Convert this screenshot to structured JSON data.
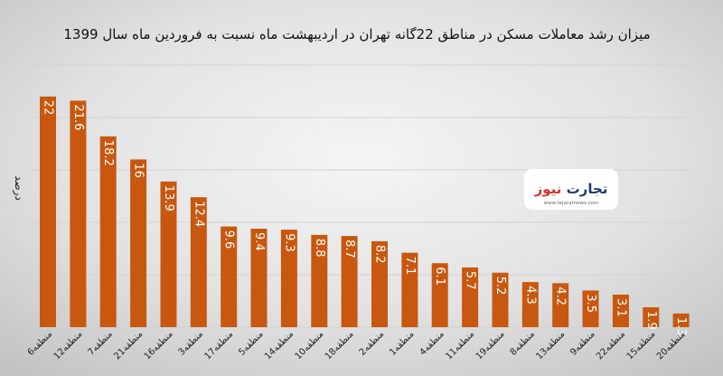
{
  "chart_data": {
    "type": "bar",
    "title": "میزان رشد معاملات مسکن در مناطق 22گانه تهران در اردیبهشت ماه نسبت به فروردین ماه سال 1399",
    "ylabel": "درصد",
    "xlabel": "",
    "categories": [
      "منطقه6",
      "منطقه12",
      "منطقه7",
      "منطقه21",
      "منطقه16",
      "منطقه3",
      "منطقه17",
      "منطقه5",
      "منطقه14",
      "منطقه10",
      "منطقه18",
      "منطقه2",
      "منطقه1",
      "منطقه4",
      "منطقه11",
      "منطقه19",
      "منطقه8",
      "منطقه13",
      "منطقه9",
      "منطقه22",
      "منطقه15",
      "منطقه20"
    ],
    "values": [
      22,
      21.6,
      18.2,
      16,
      13.9,
      12.4,
      9.6,
      9.4,
      9.3,
      8.8,
      8.7,
      8.2,
      7.1,
      6.1,
      5.7,
      5.2,
      4.3,
      4.2,
      3.5,
      3.1,
      1.9,
      1.3
    ],
    "value_labels": [
      "22",
      "21.6",
      "18.2",
      "16",
      "13.9",
      "12.4",
      "9.6",
      "9.4",
      "9.3",
      "8.8",
      "8.7",
      "8.2",
      "7.1",
      "6.1",
      "5.7",
      "5.2",
      "4.3",
      "4.2",
      "3.5",
      "3.1",
      "1.9",
      "1.3"
    ],
    "ylim": [
      0,
      25
    ],
    "grid": true,
    "legend": "none",
    "colors": {
      "bar": "#c8580f",
      "gridline": "#d2d2d2",
      "plot_background_light": "#f4f4f4",
      "plot_background_dark": "#c4c4c4"
    }
  },
  "logo": {
    "text_a": "تجارت",
    "text_b": "نیوز",
    "url": "www.tejaratnews.com",
    "color_a": "#1f3b73",
    "color_b": "#d0342c"
  }
}
